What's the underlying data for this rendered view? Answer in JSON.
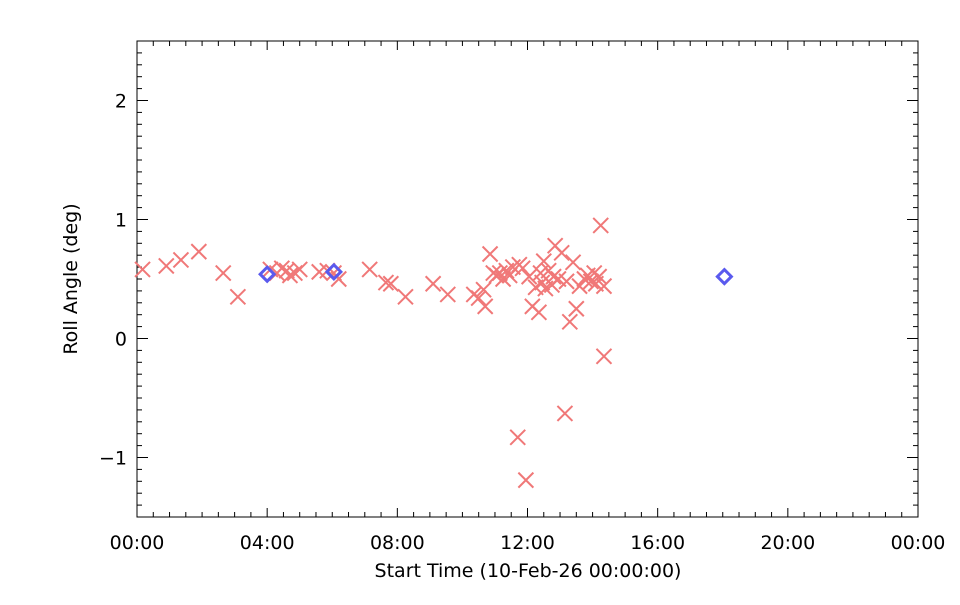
{
  "chart_data": {
    "type": "scatter",
    "title": "",
    "xlabel": "Start Time (10-Feb-26 00:00:00)",
    "ylabel": "Roll Angle (deg)",
    "x_unit": "hours",
    "xlim": [
      0,
      24
    ],
    "ylim": [
      -1.5,
      2.5
    ],
    "x_ticks": [
      0,
      4,
      8,
      12,
      16,
      20,
      24
    ],
    "x_tick_labels": [
      "00:00",
      "04:00",
      "08:00",
      "12:00",
      "16:00",
      "20:00",
      "00:00"
    ],
    "y_ticks": [
      -1,
      0,
      1,
      2
    ],
    "y_tick_labels": [
      "−1",
      "0",
      "1",
      "2"
    ],
    "grid": false,
    "series": [
      {
        "marker": "x",
        "color": "#f07878",
        "points": [
          [
            0.17,
            0.58
          ],
          [
            0.9,
            0.61
          ],
          [
            1.35,
            0.66
          ],
          [
            1.9,
            0.73
          ],
          [
            2.65,
            0.55
          ],
          [
            3.1,
            0.35
          ],
          [
            4.1,
            0.58
          ],
          [
            4.3,
            0.55
          ],
          [
            4.45,
            0.59
          ],
          [
            4.6,
            0.57
          ],
          [
            4.7,
            0.53
          ],
          [
            4.85,
            0.55
          ],
          [
            5.0,
            0.58
          ],
          [
            5.6,
            0.56
          ],
          [
            5.85,
            0.57
          ],
          [
            6.05,
            0.55
          ],
          [
            6.2,
            0.5
          ],
          [
            7.15,
            0.58
          ],
          [
            7.65,
            0.47
          ],
          [
            7.8,
            0.46
          ],
          [
            8.25,
            0.35
          ],
          [
            9.1,
            0.46
          ],
          [
            9.55,
            0.37
          ],
          [
            10.35,
            0.37
          ],
          [
            10.5,
            0.34
          ],
          [
            10.65,
            0.41
          ],
          [
            10.7,
            0.27
          ],
          [
            10.85,
            0.71
          ],
          [
            10.95,
            0.55
          ],
          [
            11.05,
            0.53
          ],
          [
            11.15,
            0.55
          ],
          [
            11.25,
            0.5
          ],
          [
            11.35,
            0.57
          ],
          [
            11.45,
            0.53
          ],
          [
            11.55,
            0.6
          ],
          [
            11.7,
            -0.83
          ],
          [
            11.75,
            0.62
          ],
          [
            11.85,
            0.59
          ],
          [
            11.95,
            -1.19
          ],
          [
            12.05,
            0.52
          ],
          [
            12.15,
            0.27
          ],
          [
            12.25,
            0.43
          ],
          [
            12.35,
            0.22
          ],
          [
            12.4,
            0.55
          ],
          [
            12.45,
            0.47
          ],
          [
            12.5,
            0.65
          ],
          [
            12.55,
            0.42
          ],
          [
            12.65,
            0.57
          ],
          [
            12.75,
            0.45
          ],
          [
            12.8,
            0.52
          ],
          [
            12.85,
            0.78
          ],
          [
            12.95,
            0.5
          ],
          [
            13.05,
            0.72
          ],
          [
            13.15,
            -0.63
          ],
          [
            13.2,
            0.48
          ],
          [
            13.3,
            0.14
          ],
          [
            13.4,
            0.64
          ],
          [
            13.5,
            0.25
          ],
          [
            13.6,
            0.44
          ],
          [
            13.75,
            0.5
          ],
          [
            13.85,
            0.53
          ],
          [
            13.95,
            0.48
          ],
          [
            14.05,
            0.55
          ],
          [
            14.1,
            0.46
          ],
          [
            14.2,
            0.52
          ],
          [
            14.25,
            0.95
          ],
          [
            14.35,
            0.44
          ],
          [
            14.35,
            -0.15
          ]
        ]
      },
      {
        "marker": "diamond",
        "color": "#5a5aee",
        "points": [
          [
            4.0,
            0.54
          ],
          [
            6.05,
            0.56
          ],
          [
            18.05,
            0.52
          ]
        ]
      }
    ]
  }
}
